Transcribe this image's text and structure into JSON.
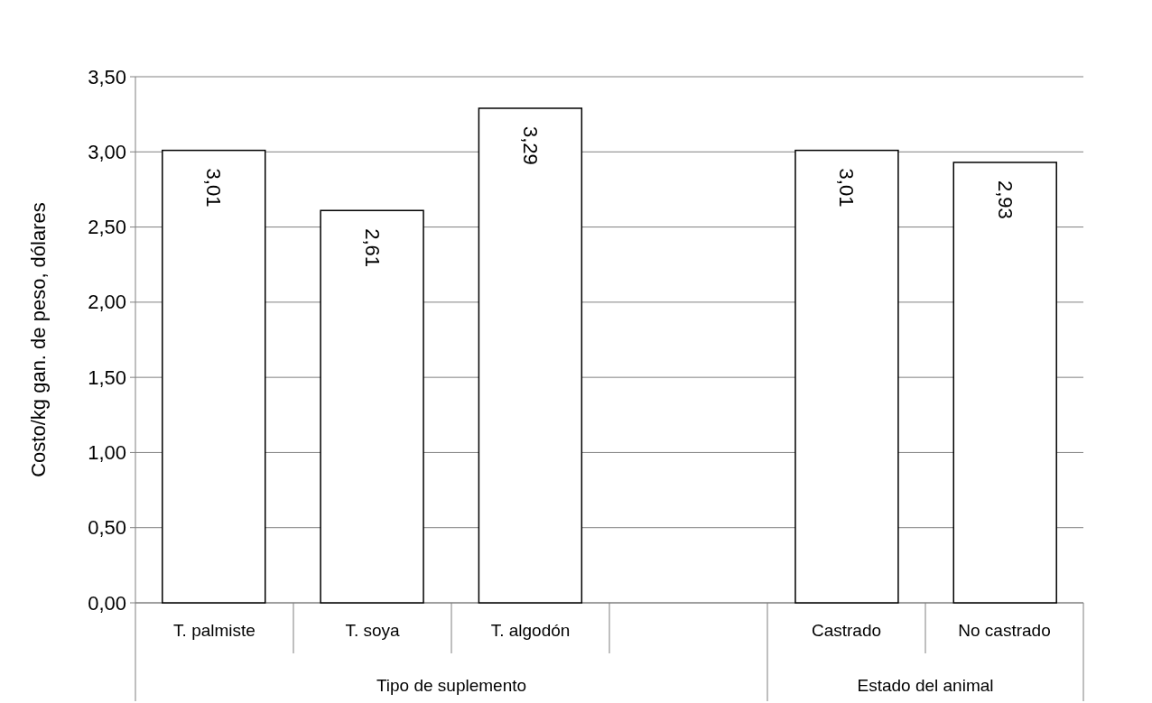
{
  "chart_data": {
    "type": "bar",
    "categories": [
      "T. palmiste",
      "T. soya",
      "T. algodón",
      null,
      "Castrado",
      "No castrado"
    ],
    "values": [
      3.01,
      2.61,
      3.29,
      null,
      3.01,
      2.93
    ],
    "color": "#ffffff",
    "value_labels": [
      "3,01",
      "2,61",
      "3,29",
      null,
      "3,01",
      "2,93"
    ],
    "ylabel": "Costo/kg gan. de peso, dólares",
    "ylim": [
      0,
      3.5
    ],
    "yticks": [
      {
        "value": 0,
        "label": "0,00"
      },
      {
        "value": 0.5,
        "label": "0,50"
      },
      {
        "value": 1,
        "label": "1,00"
      },
      {
        "value": 1.5,
        "label": "1,50"
      },
      {
        "value": 2,
        "label": "2,00"
      },
      {
        "value": 2.5,
        "label": "2,50"
      },
      {
        "value": 3,
        "label": "3,00"
      },
      {
        "value": 3.5,
        "label": "3,50"
      }
    ],
    "grid": "y",
    "annotations": [
      "Tipo de suplemento",
      "Estado del animal"
    ]
  }
}
